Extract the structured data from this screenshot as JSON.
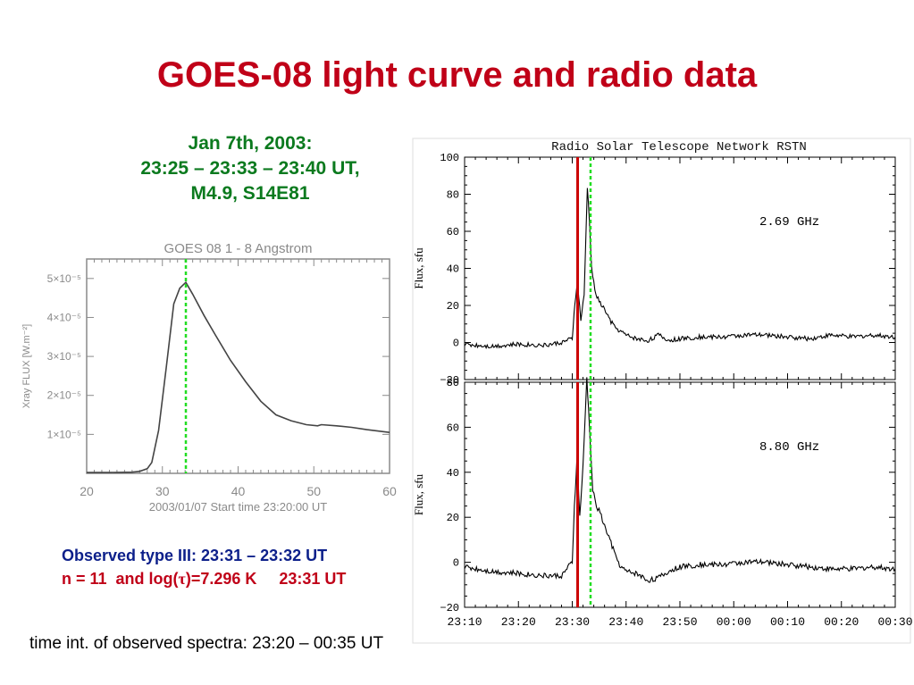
{
  "slide": {
    "title": "GOES-08 light curve and radio data",
    "event_line1": "Jan 7th, 2003:",
    "event_line2": "23:25 – 23:33 – 23:40 UT,",
    "event_line3": "M4.9, S14E81",
    "observed_type": "Observed type III: 23:31 – 23:32 UT",
    "n_value": "n = 11  and log(",
    "tau_symbol": "τ",
    "log_value": ")=7.296 K     23:31 UT",
    "note": "time  int. of observed spectra: 23:20 – 00:35 UT"
  },
  "colors": {
    "title": "#c00018",
    "event_text": "#0b7a1e",
    "observed_text": "#0c1f8a",
    "marker_red": "#cc0000",
    "marker_green": "#22dd22",
    "goes_axes": "#8a8a8a"
  },
  "chart_data": [
    {
      "type": "line",
      "title": "GOES 08    1 - 8 Angstrom",
      "ylabel": "Xray FLUX  [W.m⁻²]",
      "xlabel": "2003/01/07  Start time  23:20:00 UT",
      "xlim": [
        20,
        60
      ],
      "ylim": [
        0,
        5.5e-05
      ],
      "xticks": [
        "20",
        "30",
        "40",
        "50",
        "60"
      ],
      "yticks": [
        {
          "label": "1×10⁻⁵",
          "value": 1e-05
        },
        {
          "label": "2×10⁻⁵",
          "value": 2e-05
        },
        {
          "label": "3×10⁻⁵",
          "value": 3e-05
        },
        {
          "label": "4×10⁻⁵",
          "value": 4e-05
        },
        {
          "label": "5×10⁻⁵",
          "value": 5e-05
        }
      ],
      "marker_x": 33.1,
      "series": [
        {
          "x": [
            20,
            23,
            26,
            27,
            28,
            28.6,
            29.5,
            30.5,
            31.5,
            32.3,
            33.1,
            34,
            35.5,
            37,
            39,
            41,
            43,
            45,
            47,
            49,
            50.5,
            51,
            53,
            55,
            57,
            60
          ],
          "y": [
            2e-07,
            2e-07,
            3e-07,
            5e-07,
            1.2e-06,
            2.8e-06,
            1.1e-05,
            2.7e-05,
            4.35e-05,
            4.75e-05,
            4.9e-05,
            4.6e-05,
            4.05e-05,
            3.55e-05,
            2.9e-05,
            2.35e-05,
            1.85e-05,
            1.5e-05,
            1.35e-05,
            1.25e-05,
            1.22e-05,
            1.25e-05,
            1.22e-05,
            1.18e-05,
            1.12e-05,
            1.05e-05
          ]
        }
      ]
    },
    {
      "type": "line",
      "title": "Radio Solar Telescope Network RSTN",
      "annotation": "2.69 GHz",
      "ylabel": "Flux, sfu",
      "xlim": [
        0,
        80
      ],
      "ylim": [
        -20,
        100
      ],
      "yticks": [
        "100",
        "80",
        "60",
        "40",
        "20",
        "0",
        "−20"
      ],
      "ytick_values": [
        100,
        80,
        60,
        40,
        20,
        0,
        -20
      ],
      "red_marker_min": 21,
      "green_marker_min": 23.4,
      "series": [
        {
          "x": [
            0,
            5,
            10,
            15,
            18,
            20,
            20.5,
            21,
            21.6,
            22.2,
            22.8,
            23.2,
            23.6,
            24.2,
            25,
            26,
            27,
            28,
            29,
            30,
            32,
            34,
            36,
            38,
            40,
            44,
            48,
            52,
            56,
            60,
            64,
            68,
            72,
            76,
            80
          ],
          "y": [
            -1,
            -2,
            -1,
            -1.5,
            0,
            2,
            22,
            32,
            12,
            25,
            84,
            65,
            40,
            28,
            22,
            18,
            12,
            8,
            6,
            4,
            2,
            1,
            4,
            1,
            2,
            3,
            3,
            4,
            4,
            3,
            2,
            4,
            3,
            4,
            3
          ]
        }
      ]
    },
    {
      "type": "line",
      "annotation": "8.80 GHz",
      "ylabel": "Flux, sfu",
      "xlim": [
        0,
        80
      ],
      "ylim": [
        -20,
        80
      ],
      "yticks": [
        "80",
        "60",
        "40",
        "20",
        "0",
        "−20"
      ],
      "ytick_values": [
        80,
        60,
        40,
        20,
        0,
        -20
      ],
      "xticks": [
        "23:10",
        "23:20",
        "23:30",
        "23:40",
        "23:50",
        "00:00",
        "00:10",
        "00:20",
        "00:30"
      ],
      "red_marker_min": 21,
      "green_marker_min": 23.4,
      "series": [
        {
          "x": [
            0,
            5,
            10,
            15,
            18,
            20,
            20.4,
            20.9,
            21.4,
            22,
            22.7,
            23.2,
            23.8,
            24.5,
            25.2,
            26,
            27,
            28,
            29,
            30,
            32,
            34,
            36,
            38,
            40,
            44,
            48,
            52,
            56,
            60,
            64,
            68,
            72,
            76,
            80
          ],
          "y": [
            -2,
            -4,
            -5,
            -6,
            -6,
            0,
            25,
            47,
            20,
            42,
            82,
            60,
            32,
            25,
            22,
            16,
            10,
            3,
            -2,
            -4,
            -5,
            -8,
            -7,
            -4,
            -2,
            -1,
            -1,
            0,
            0,
            -1,
            -2,
            -3,
            -3,
            -2,
            -3
          ]
        }
      ]
    }
  ]
}
